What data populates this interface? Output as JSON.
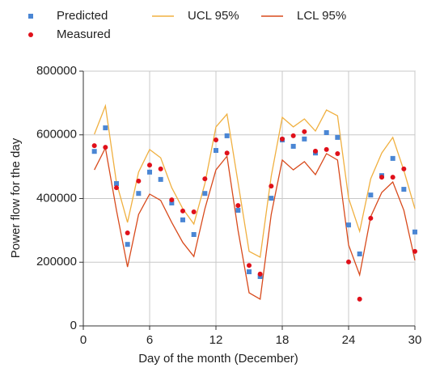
{
  "chart_data": {
    "type": "line",
    "xlabel": "Day of the month (December)",
    "ylabel": "Power flow for the day",
    "x": [
      1,
      2,
      3,
      4,
      5,
      6,
      7,
      8,
      9,
      10,
      11,
      12,
      13,
      14,
      15,
      16,
      17,
      18,
      19,
      20,
      21,
      22,
      23,
      24,
      25,
      26,
      27,
      28,
      29,
      30
    ],
    "xlim": [
      0,
      30
    ],
    "xticks": [
      0,
      6,
      12,
      18,
      24,
      30
    ],
    "ylim": [
      0,
      800000
    ],
    "yticks": [
      0,
      200000,
      400000,
      600000,
      800000
    ],
    "grid": true,
    "series": [
      {
        "name": "Predicted",
        "color": "#4a86d4",
        "marker": "square",
        "values": [
          548000,
          622000,
          447000,
          256000,
          416000,
          483000,
          460000,
          386000,
          333000,
          287000,
          416000,
          551000,
          597000,
          363000,
          170000,
          155000,
          401000,
          584000,
          564000,
          587000,
          543000,
          607000,
          592000,
          317000,
          226000,
          411000,
          472000,
          526000,
          429000,
          295000
        ]
      },
      {
        "name": "Measured",
        "color": "#e0101a",
        "marker": "circle",
        "values": [
          566000,
          561000,
          434000,
          292000,
          455000,
          505000,
          493000,
          396000,
          361000,
          358000,
          462000,
          584000,
          543000,
          378000,
          190000,
          163000,
          439000,
          587000,
          597000,
          610000,
          549000,
          554000,
          541000,
          201000,
          84000,
          338000,
          467000,
          467000,
          493000,
          234000
        ]
      },
      {
        "name": "UCL 95%",
        "color": "#f0b040",
        "marker": "line",
        "values": [
          602000,
          691000,
          450000,
          325000,
          483000,
          554000,
          528000,
          434000,
          368000,
          320000,
          447000,
          625000,
          665000,
          450000,
          234000,
          216000,
          470000,
          655000,
          625000,
          650000,
          612000,
          678000,
          660000,
          401000,
          297000,
          462000,
          543000,
          592000,
          488000,
          368000
        ]
      },
      {
        "name": "LCL 95%",
        "color": "#d84a1c",
        "marker": "line",
        "values": [
          490000,
          559000,
          363000,
          185000,
          350000,
          414000,
          394000,
          325000,
          262000,
          218000,
          368000,
          490000,
          533000,
          300000,
          104000,
          84000,
          350000,
          521000,
          490000,
          516000,
          475000,
          541000,
          521000,
          254000,
          160000,
          343000,
          419000,
          452000,
          363000,
          206000
        ]
      }
    ]
  }
}
